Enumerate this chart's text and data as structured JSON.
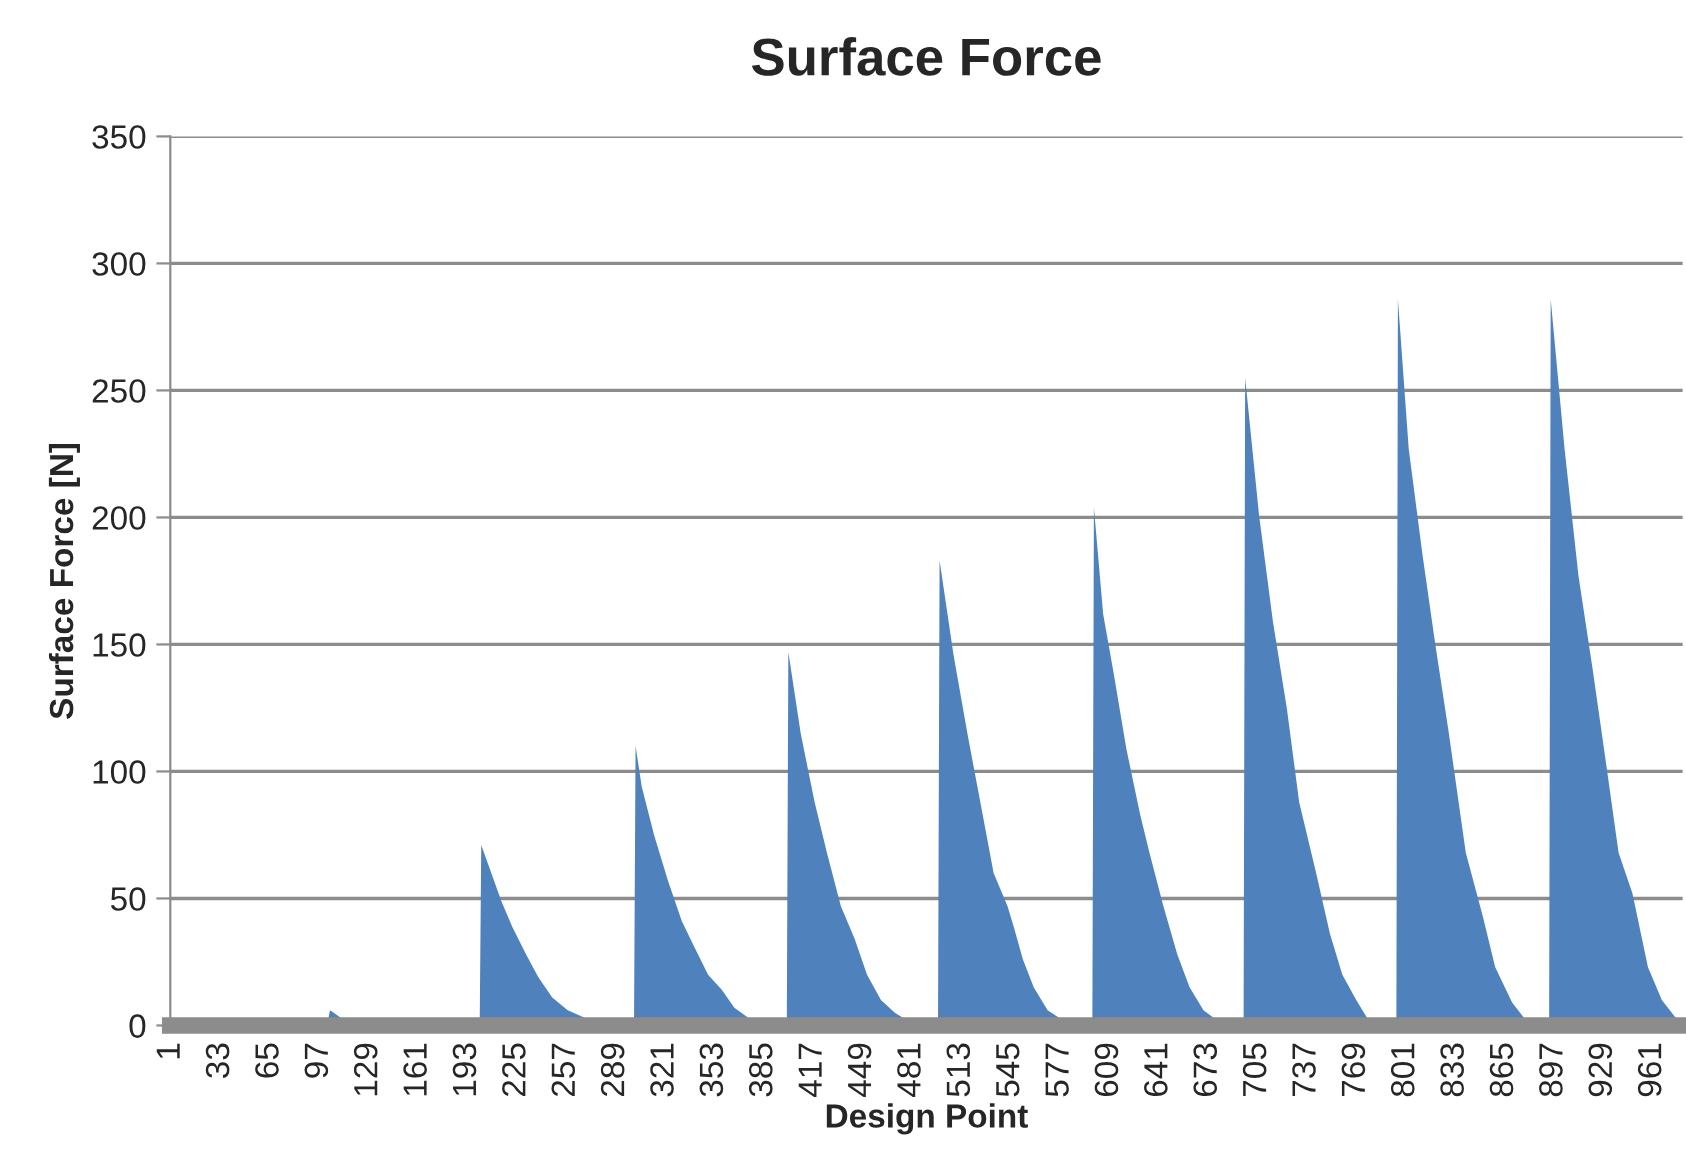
{
  "chart_data": {
    "type": "area",
    "title": "Surface Force",
    "xlabel": "Design Point",
    "ylabel": "Surface Force [N]",
    "series": [
      {
        "color": "#4f81bd",
        "x": [
          1,
          102,
          104,
          112,
          120,
          121,
          139,
          140,
          157,
          158,
          201,
          202,
          215,
          222,
          231,
          239,
          248,
          258,
          269,
          284,
          301,
          302,
          306,
          314,
          323,
          332,
          340,
          349,
          358,
          366,
          375,
          383,
          400,
          401,
          409,
          418,
          426,
          435,
          444,
          452,
          461,
          470,
          478,
          487,
          498,
          499,
          508,
          517,
          526,
          534,
          543,
          547,
          553,
          560,
          569,
          579,
          588,
          598,
          599,
          605,
          612,
          620,
          629,
          635,
          644,
          653,
          661,
          670,
          681,
          689,
          696,
          697,
          706,
          715,
          724,
          732,
          743,
          752,
          760,
          769,
          777,
          786,
          795,
          796,
          803,
          812,
          820,
          829,
          840,
          851,
          859,
          870,
          879,
          885,
          894,
          895,
          904,
          913,
          922,
          930,
          939,
          948,
          958,
          967,
          976,
          980
        ],
        "values": [
          0,
          0,
          6,
          2.6,
          0.5,
          0,
          0,
          1,
          1,
          0,
          0,
          71,
          49,
          39,
          28,
          19,
          11,
          6,
          3,
          0,
          0,
          110,
          94,
          75,
          57,
          41,
          31,
          20,
          14,
          7,
          3,
          0,
          0,
          147,
          115,
          88,
          68,
          47,
          34,
          20,
          10,
          5,
          2,
          0,
          0,
          183,
          146,
          115,
          86,
          60,
          47,
          39,
          26,
          15,
          6,
          2,
          0,
          0,
          204,
          162,
          138,
          109,
          83,
          68,
          47,
          28,
          15,
          6,
          1,
          0,
          0,
          255,
          201,
          159,
          125,
          88,
          60,
          36,
          20,
          10,
          2,
          0,
          0,
          286,
          227,
          185,
          151,
          115,
          68,
          43,
          23,
          9,
          2,
          0,
          0,
          286,
          227,
          177,
          141,
          107,
          68,
          52,
          23,
          10,
          3,
          2
        ]
      }
    ],
    "xlim": [
      0.5,
      980.5
    ],
    "xticks": [
      1,
      33,
      65,
      97,
      129,
      161,
      193,
      225,
      257,
      289,
      321,
      353,
      385,
      417,
      449,
      481,
      513,
      545,
      577,
      609,
      641,
      673,
      705,
      737,
      769,
      801,
      833,
      865,
      897,
      929,
      961
    ],
    "ylim": [
      0,
      350
    ],
    "yticks": [
      0,
      50,
      100,
      150,
      200,
      250,
      300,
      350
    ],
    "grid": "y"
  }
}
